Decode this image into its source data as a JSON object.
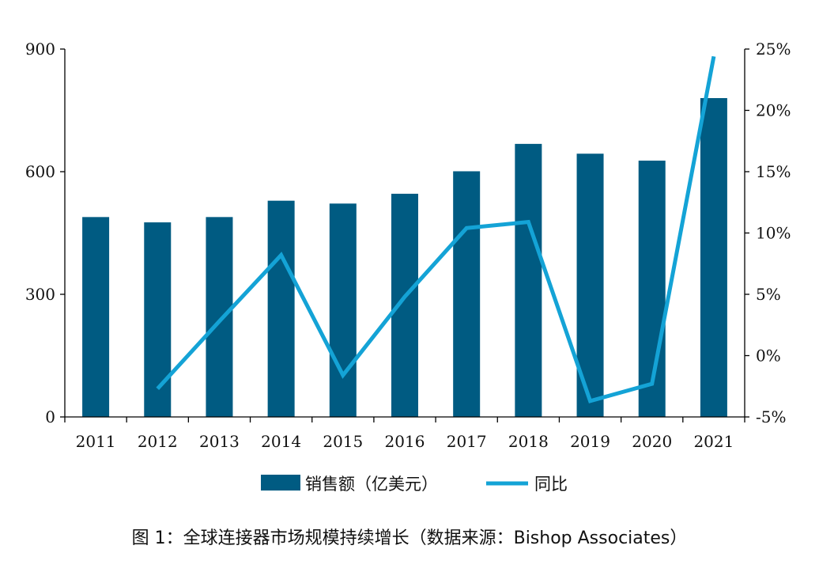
{
  "caption": "图 1：全球连接器市场规模持续增长（数据来源：Bishop Associates）",
  "colors": {
    "bar": "#005b82",
    "line": "#14a3d6",
    "axis": "#000000"
  },
  "chart_data": {
    "type": "bar",
    "categories": [
      "2011",
      "2012",
      "2013",
      "2014",
      "2015",
      "2016",
      "2017",
      "2018",
      "2019",
      "2020",
      "2021"
    ],
    "series": [
      {
        "name": "销售额（亿美元）",
        "type": "bar",
        "axis": "left",
        "values": [
          489,
          476,
          489,
          529,
          522,
          546,
          601,
          668,
          644,
          627,
          780
        ]
      },
      {
        "name": "同比",
        "type": "line",
        "axis": "right",
        "values": [
          null,
          -2.7,
          2.8,
          8.2,
          -1.6,
          4.8,
          10.4,
          10.9,
          -3.7,
          -2.3,
          24.4
        ]
      }
    ],
    "y_left": {
      "min": 0,
      "max": 900,
      "ticks": [
        "0",
        "300",
        "600",
        "900"
      ],
      "tick_values": [
        0,
        300,
        600,
        900
      ]
    },
    "y_right": {
      "min": -5,
      "max": 25,
      "ticks": [
        "-5%",
        "0%",
        "5%",
        "10%",
        "15%",
        "20%",
        "25%"
      ],
      "tick_values": [
        -5,
        0,
        5,
        10,
        15,
        20,
        25
      ]
    },
    "legend": {
      "position": "bottom",
      "items": [
        "销售额（亿美元）",
        "同比"
      ]
    },
    "grid": false
  }
}
